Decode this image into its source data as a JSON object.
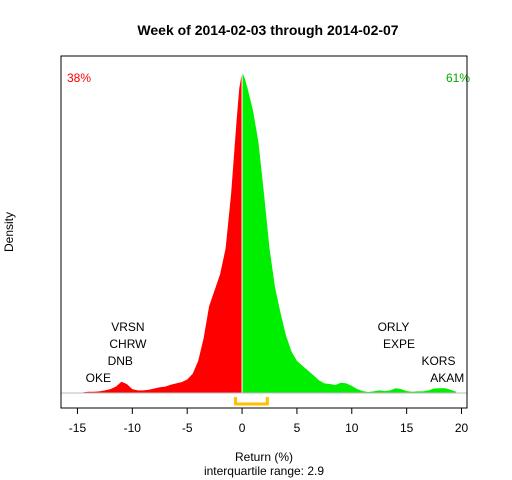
{
  "chart_data": {
    "type": "area",
    "title": "Week of 2014-02-03 through 2014-02-07",
    "xlabel": "Return (%)",
    "subtitle": "interquartile range: 2.9",
    "ylabel": "Density",
    "xlim": [
      -16.5,
      20.5
    ],
    "ylim": [
      0,
      1
    ],
    "xticks": [
      "-15",
      "-10",
      "-5",
      "0",
      "5",
      "10",
      "15",
      "20"
    ],
    "split_at": 0,
    "negative_share": "38%",
    "positive_share": "61%",
    "interquartile_range": [
      -0.6,
      2.3
    ],
    "density": {
      "x": [
        -14.5,
        -14,
        -13.5,
        -13,
        -12.5,
        -12,
        -11.5,
        -11,
        -10.5,
        -10,
        -9.5,
        -9,
        -8.5,
        -8,
        -7.5,
        -7,
        -6.5,
        -6,
        -5.5,
        -5,
        -4.5,
        -4,
        -3.5,
        -3,
        -2.5,
        -2,
        -1.5,
        -1,
        -0.5,
        -0.25,
        0,
        0.25,
        0.5,
        1,
        1.5,
        2,
        2.5,
        3,
        3.5,
        4,
        4.5,
        5,
        5.5,
        6,
        6.5,
        7,
        7.5,
        8,
        8.5,
        9,
        9.5,
        10,
        10.5,
        11,
        11.5,
        12,
        12.5,
        13,
        13.5,
        14,
        14.5,
        15,
        15.5,
        16,
        16.5,
        17,
        17.5,
        18,
        18.5,
        19,
        19.5
      ],
      "y": [
        0.002,
        0.004,
        0.004,
        0.005,
        0.008,
        0.012,
        0.02,
        0.035,
        0.028,
        0.012,
        0.008,
        0.008,
        0.01,
        0.014,
        0.018,
        0.02,
        0.026,
        0.03,
        0.034,
        0.042,
        0.06,
        0.1,
        0.17,
        0.27,
        0.32,
        0.37,
        0.45,
        0.62,
        0.85,
        0.95,
        1.0,
        0.98,
        0.95,
        0.88,
        0.78,
        0.62,
        0.45,
        0.33,
        0.25,
        0.18,
        0.13,
        0.1,
        0.085,
        0.07,
        0.055,
        0.04,
        0.03,
        0.028,
        0.025,
        0.032,
        0.03,
        0.022,
        0.012,
        0.006,
        0.003,
        0.005,
        0.008,
        0.006,
        0.008,
        0.015,
        0.012,
        0.006,
        0.004,
        0.005,
        0.005,
        0.008,
        0.014,
        0.015,
        0.015,
        0.01,
        0.004
      ]
    },
    "annotations": [
      {
        "label": "OKE",
        "x": -13.1,
        "row": 0
      },
      {
        "label": "DNB",
        "x": -11.1,
        "row": 1
      },
      {
        "label": "CHRW",
        "x": -10.4,
        "row": 2
      },
      {
        "label": "VRSN",
        "x": -10.4,
        "row": 3
      },
      {
        "label": "AKAM",
        "x": 18.7,
        "row": 0
      },
      {
        "label": "KORS",
        "x": 17.9,
        "row": 1
      },
      {
        "label": "EXPE",
        "x": 14.3,
        "row": 2
      },
      {
        "label": "ORLY",
        "x": 13.8,
        "row": 3
      }
    ],
    "colors": {
      "negative": "#ff0000",
      "positive": "#00ee00",
      "iqr": "#ffc000"
    }
  }
}
